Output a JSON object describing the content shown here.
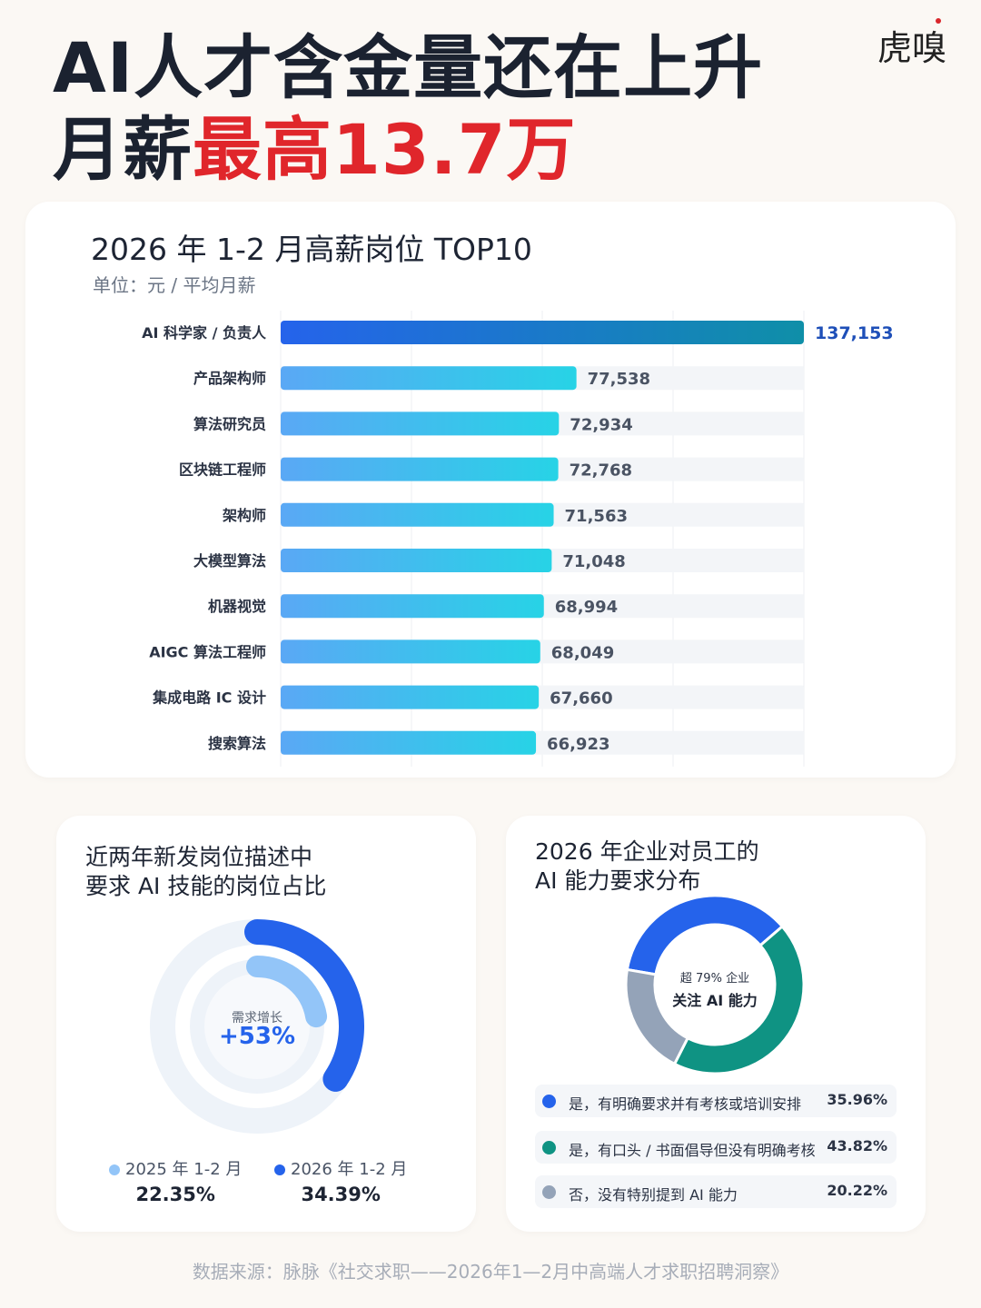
{
  "header": {
    "title_line1": "AI人才含金量还在上升",
    "title_line2_prefix": "月薪",
    "title_line2_highlight": "最高13.7万",
    "logo_text": "虎嗅"
  },
  "bar_card": {
    "title": "2026 年 1-2 月高薪岗位 TOP10",
    "unit": "单位：元 / 平均月薪"
  },
  "ring_card": {
    "title_line1": "近两年新发岗位描述中",
    "title_line2": "要求 AI 技能的岗位占比",
    "center_label": "需求增长",
    "center_value": "+53%",
    "legend": [
      {
        "label": "2025 年 1-2 月",
        "value": "22.35%"
      },
      {
        "label": "2026 年 1-2 月",
        "value": "34.39%"
      }
    ]
  },
  "donut_card": {
    "title_line1": "2026 年企业对员工的",
    "title_line2": "AI 能力要求分布",
    "center_line1": "超 79% 企业",
    "center_line2": "关注 AI 能力",
    "rows": [
      {
        "label": "是，有明确要求并有考核或培训安排",
        "value": "35.96%"
      },
      {
        "label": "是，有口头 / 书面倡导但没有明确考核",
        "value": "43.82%"
      },
      {
        "label": "否，没有特别提到 AI 能力",
        "value": "20.22%"
      }
    ]
  },
  "footer": {
    "source": "数据来源：脉脉《社交求职——2026年1—2月中高端人才求职招聘洞察》"
  },
  "colors": {
    "accent_red": "#e0262b",
    "bar_gradient_start": "#5aa8f5",
    "bar_gradient_end": "#27d3e6",
    "top_bar_start": "#2563eb",
    "top_bar_end": "#0f8fa8",
    "ring_2025": "#93c5f8",
    "ring_2026": "#2563eb",
    "donut_blue": "#2563eb",
    "donut_teal": "#0f9383",
    "donut_gray": "#94a3b8"
  },
  "chart_data": [
    {
      "type": "bar",
      "orientation": "horizontal",
      "title": "2026 年 1-2 月高薪岗位 TOP10",
      "subtitle": "单位：元 / 平均月薪",
      "categories": [
        "AI 科学家 / 负责人",
        "产品架构师",
        "算法研究员",
        "区块链工程师",
        "架构师",
        "大模型算法",
        "机器视觉",
        "AIGC 算法工程师",
        "集成电路 IC 设计",
        "搜索算法"
      ],
      "values": [
        137153,
        77538,
        72934,
        72768,
        71563,
        71048,
        68994,
        68049,
        67660,
        66923
      ],
      "value_labels": [
        "137,153",
        "77,538",
        "72,934",
        "72,768",
        "71,563",
        "71,048",
        "68,994",
        "68,049",
        "67,660",
        "66,923"
      ],
      "xlim": [
        0,
        137153
      ],
      "grid": true
    },
    {
      "type": "pie",
      "style": "concentric-ring",
      "title": "近两年新发岗位描述中要求 AI 技能的岗位占比",
      "series": [
        {
          "name": "2025 年 1-2 月",
          "value": 22.35
        },
        {
          "name": "2026 年 1-2 月",
          "value": 34.39
        }
      ]
    },
    {
      "type": "pie",
      "style": "donut",
      "title": "2026 年企业对员工的AI 能力要求分布",
      "categories": [
        "是，有明确要求并有考核或培训安排",
        "是，有口头 / 书面倡导但没有明确考核",
        "否，没有特别提到 AI 能力"
      ],
      "values": [
        35.96,
        43.82,
        20.22
      ]
    }
  ]
}
